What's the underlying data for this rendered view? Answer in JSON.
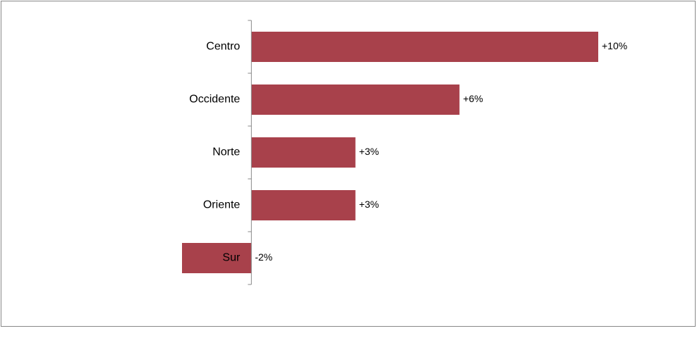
{
  "chart_data": {
    "type": "bar",
    "orientation": "horizontal",
    "categories": [
      "Centro",
      "Occidente",
      "Norte",
      "Oriente",
      "Sur"
    ],
    "values": [
      10,
      6,
      3,
      3,
      -2
    ],
    "value_labels": [
      "+10%",
      "+6%",
      "+3%",
      "+3%",
      "-2%"
    ],
    "color": "#a8414b"
  }
}
